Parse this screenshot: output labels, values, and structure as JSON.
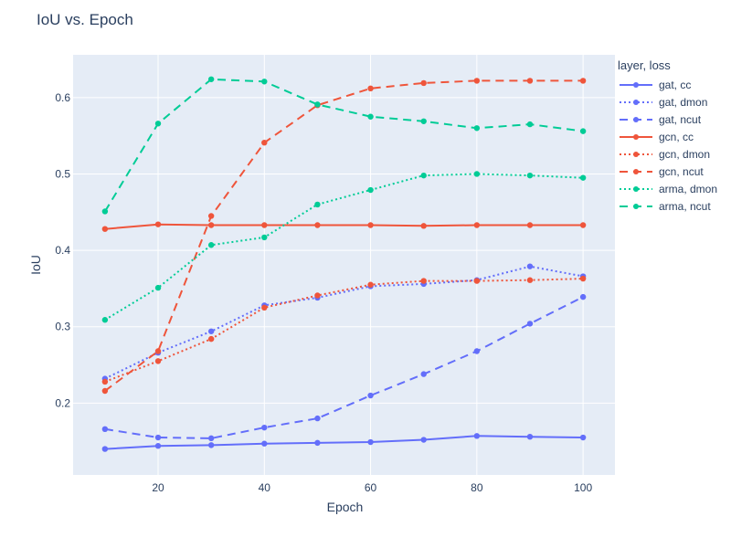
{
  "title": "IoU vs. Epoch",
  "chart_data": {
    "type": "line",
    "title": "IoU vs. Epoch",
    "xlabel": "Epoch",
    "ylabel": "IoU",
    "xlim": [
      4,
      106
    ],
    "ylim": [
      0.106,
      0.656
    ],
    "x_ticks": [
      20,
      40,
      60,
      80,
      100
    ],
    "y_ticks": [
      0.2,
      0.3,
      0.4,
      0.5,
      0.6
    ],
    "y_tick_labels": [
      "0.2",
      "0.3",
      "0.4",
      "0.5",
      "0.6"
    ],
    "grid": true,
    "legend_title": "layer, loss",
    "legend_position": "right",
    "plot_background": "#e5ecf6",
    "x": [
      10,
      20,
      30,
      40,
      50,
      60,
      70,
      80,
      90,
      100
    ],
    "series": [
      {
        "name": "gat, cc",
        "color": "#636efa",
        "dash": "solid",
        "values": [
          0.14,
          0.144,
          0.145,
          0.147,
          0.148,
          0.149,
          0.152,
          0.157,
          0.156,
          0.155
        ]
      },
      {
        "name": "gat, dmon",
        "color": "#636efa",
        "dash": "dot",
        "values": [
          0.232,
          0.266,
          0.294,
          0.328,
          0.338,
          0.353,
          0.356,
          0.361,
          0.379,
          0.366
        ]
      },
      {
        "name": "gat, ncut",
        "color": "#636efa",
        "dash": "dash",
        "values": [
          0.166,
          0.155,
          0.154,
          0.168,
          0.18,
          0.21,
          0.238,
          0.268,
          0.304,
          0.339
        ]
      },
      {
        "name": "gcn, cc",
        "color": "#ef553b",
        "dash": "solid",
        "values": [
          0.428,
          0.434,
          0.433,
          0.433,
          0.433,
          0.433,
          0.432,
          0.433,
          0.433,
          0.433
        ]
      },
      {
        "name": "gcn, dmon",
        "color": "#ef553b",
        "dash": "dot",
        "values": [
          0.228,
          0.255,
          0.284,
          0.325,
          0.341,
          0.355,
          0.36,
          0.36,
          0.361,
          0.363
        ]
      },
      {
        "name": "gcn, ncut",
        "color": "#ef553b",
        "dash": "dash",
        "values": [
          0.216,
          0.268,
          0.445,
          0.541,
          0.59,
          0.612,
          0.619,
          0.622,
          0.622,
          0.622
        ]
      },
      {
        "name": "arma, dmon",
        "color": "#00cc96",
        "dash": "dot",
        "values": [
          0.309,
          0.351,
          0.407,
          0.417,
          0.46,
          0.479,
          0.498,
          0.5,
          0.498,
          0.495
        ]
      },
      {
        "name": "arma, ncut",
        "color": "#00cc96",
        "dash": "dash",
        "values": [
          0.451,
          0.566,
          0.624,
          0.621,
          0.591,
          0.575,
          0.569,
          0.56,
          0.565,
          0.556
        ]
      }
    ]
  }
}
